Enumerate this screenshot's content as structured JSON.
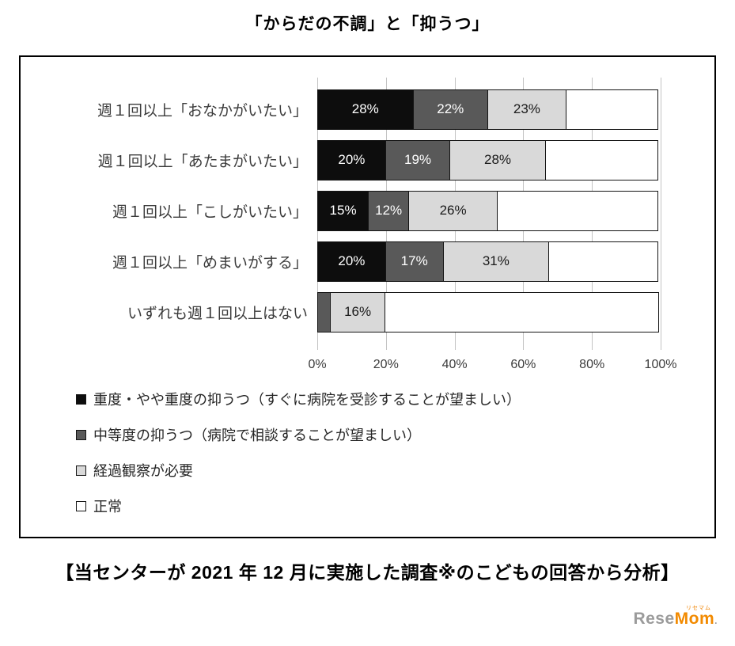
{
  "title": "「からだの不調」と「抑うつ」",
  "caption": "【当センターが 2021 年 12 月に実施した調査※のこどもの回答から分析】",
  "logo": {
    "part1": "Rese",
    "part2": "Mom",
    "suffix": ".",
    "ruby": "リセマム"
  },
  "chart_data": {
    "type": "bar",
    "stacked": true,
    "orientation": "horizontal",
    "title": "「からだの不調」と「抑うつ」",
    "categories": [
      "週１回以上「おなかがいたい」",
      "週１回以上「あたまがいたい」",
      "週１回以上「こしがいたい」",
      "週１回以上「めまいがする」",
      "いずれも週１回以上はない"
    ],
    "series": [
      {
        "name": "重度・やや重度の抑うつ（すぐに病院を受診することが望ましい）",
        "color": "#0d0d0d",
        "text_color": "#ffffff",
        "values": [
          28,
          20,
          15,
          20,
          0
        ],
        "labels": [
          "28%",
          "20%",
          "15%",
          "20%",
          ""
        ]
      },
      {
        "name": "中等度の抑うつ（病院で相談することが望ましい）",
        "color": "#595959",
        "text_color": "#ffffff",
        "values": [
          22,
          19,
          12,
          17,
          4
        ],
        "labels": [
          "22%",
          "19%",
          "12%",
          "17%",
          ""
        ]
      },
      {
        "name": "経過観察が必要",
        "color": "#d9d9d9",
        "text_color": "#1a1a1a",
        "values": [
          23,
          28,
          26,
          31,
          16
        ],
        "labels": [
          "23%",
          "28%",
          "26%",
          "31%",
          "16%"
        ]
      },
      {
        "name": "正常",
        "color": "#ffffff",
        "text_color": "#1a1a1a",
        "values": [
          27,
          33,
          47,
          32,
          80
        ],
        "labels": [
          "",
          "",
          "",
          "",
          ""
        ]
      }
    ],
    "xlim": [
      0,
      100
    ],
    "x_ticks": [
      "0%",
      "20%",
      "40%",
      "60%",
      "80%",
      "100%"
    ],
    "grid": true,
    "legend_position": "bottom-left"
  }
}
